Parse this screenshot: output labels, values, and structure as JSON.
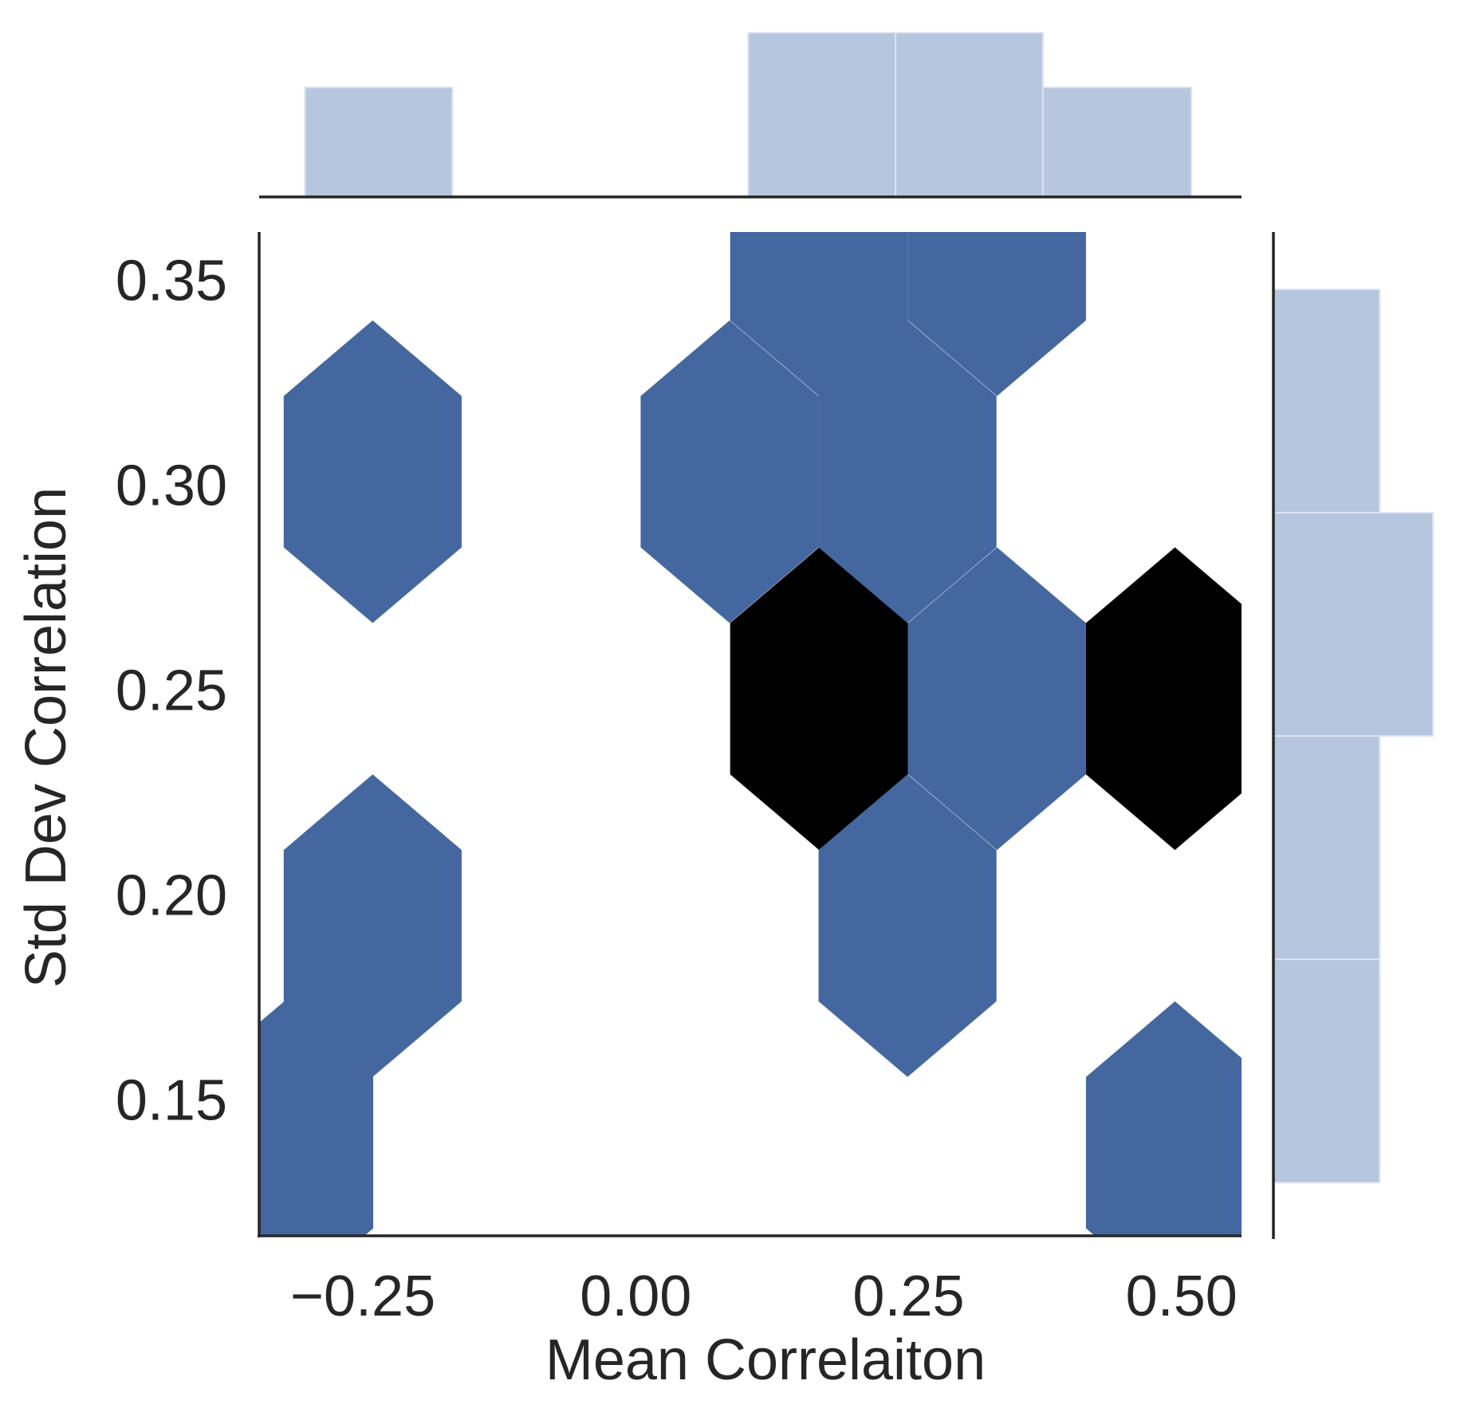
{
  "chart_data": {
    "type": "hexbin",
    "xlabel": "Mean Correlaiton",
    "ylabel": "Std Dev Correlation",
    "xlim": [
      -0.345,
      0.555
    ],
    "ylim": [
      0.1166,
      0.3616
    ],
    "x_ticks": [
      -0.25,
      0.0,
      0.25,
      0.5
    ],
    "x_tick_labels": [
      "−0.25",
      "0.00",
      "0.25",
      "0.50"
    ],
    "y_ticks": [
      0.15,
      0.2,
      0.25,
      0.3,
      0.35
    ],
    "y_tick_labels": [
      "0.15",
      "0.20",
      "0.25",
      "0.30",
      "0.35"
    ],
    "hex_colors": {
      "low": "#4467a0",
      "high": "#000000"
    },
    "hexbins": [
      {
        "x": -0.322,
        "y": 0.1369,
        "count": 1
      },
      {
        "x": -0.241,
        "y": 0.1923,
        "count": 1
      },
      {
        "x": -0.241,
        "y": 0.3031,
        "count": 1
      },
      {
        "x": 0.086,
        "y": 0.3031,
        "count": 1
      },
      {
        "x": 0.168,
        "y": 0.2477,
        "count": 2
      },
      {
        "x": 0.168,
        "y": 0.3585,
        "count": 1
      },
      {
        "x": 0.249,
        "y": 0.1923,
        "count": 1
      },
      {
        "x": 0.249,
        "y": 0.3031,
        "count": 1
      },
      {
        "x": 0.331,
        "y": 0.2477,
        "count": 1
      },
      {
        "x": 0.331,
        "y": 0.3585,
        "count": 1
      },
      {
        "x": 0.494,
        "y": 0.1369,
        "count": 1
      },
      {
        "x": 0.494,
        "y": 0.2477,
        "count": 2
      }
    ],
    "x_marginal_histogram": {
      "bin_edges": [
        -0.303,
        -0.168,
        -0.033,
        0.103,
        0.238,
        0.373,
        0.509
      ],
      "counts": [
        2,
        0,
        0,
        3,
        3,
        2
      ],
      "color": "#b6c6df"
    },
    "y_marginal_histogram": {
      "bin_edges": [
        0.1296,
        0.1841,
        0.2386,
        0.2931,
        0.3476
      ],
      "counts": [
        2,
        2,
        3,
        2
      ],
      "color": "#b6c6df"
    },
    "grid": false,
    "legend": "none"
  }
}
